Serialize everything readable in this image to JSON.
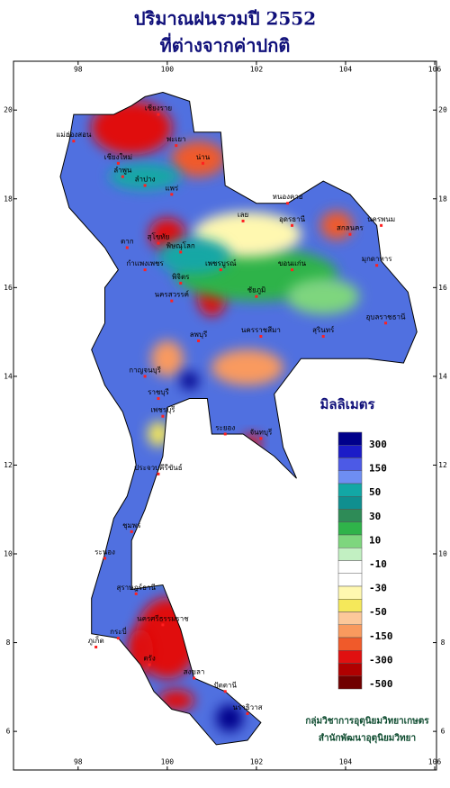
{
  "title": {
    "lines": [
      "ปริมาณฝนรวมปี  2552",
      "ที่ต่างจากค่าปกติ"
    ]
  },
  "map": {
    "lonlim": [
      96.55,
      106.04
    ],
    "latlim": [
      21.1,
      5.13
    ],
    "lonticks": [
      98,
      100,
      102,
      104,
      106
    ],
    "latticks": [
      20,
      18,
      16,
      14,
      12,
      10,
      8,
      6
    ]
  },
  "legend": {
    "title": "มิลลิเมตร",
    "colors": [
      "#00008b",
      "#1c1cc8",
      "#4c5ae6",
      "#6e8ef2",
      "#12a7a5",
      "#0f8f8f",
      "#2e8b57",
      "#2fb34a",
      "#7ed67e",
      "#c2f0c2",
      "#ffffff",
      "#ffffff",
      "#fff8b0",
      "#f5e85a",
      "#fcc89a",
      "#f99a5e",
      "#f05a2a",
      "#e01010",
      "#b00000",
      "#700000"
    ],
    "labels": [
      300,
      150,
      50,
      30,
      10,
      -10,
      -30,
      -50,
      -150,
      -300,
      -500
    ]
  },
  "provinces": [
    "เชียงราย",
    "แม่ฮ่องสอน",
    "เชียงใหม่",
    "ลำพูน",
    "พะเยา",
    "น่าน",
    "ลำปาง",
    "แพร่",
    "ตาก",
    "สุโขทัย",
    "พิษณุโลก",
    "เพชรบูรณ์",
    "กำแพงเพชร",
    "พิจิตร",
    "นครสวรรค์",
    "ลพบุรี",
    "หนองคาย",
    "อุดรธานี",
    "เลย",
    "สกลนคร",
    "นครพนม",
    "มุกดาหาร",
    "ขอนแก่น",
    "ชัยภูมิ",
    "นครราชสีมา",
    "สุรินทร์",
    "อุบลราชธานี",
    "กาญจนบุรี",
    "ราชบุรี",
    "เพชรบุรี",
    "ระยอง",
    "จันทบุรี",
    "ประจวบคีรีขันธ์",
    "ชุมพร",
    "ระนอง",
    "สุราษฎร์ธานี",
    "กระบี่",
    "นครศรีธรรมราช",
    "ภูเก็ต",
    "ตรัง",
    "สงขลา",
    "ปัตตานี",
    "นราธิวาส"
  ],
  "credit": [
    "กลุ่มวิชาการอุตุนิยมวิทยาเกษตร",
    "สำนักพัฒนาอุตุนิยมวิทยา"
  ]
}
